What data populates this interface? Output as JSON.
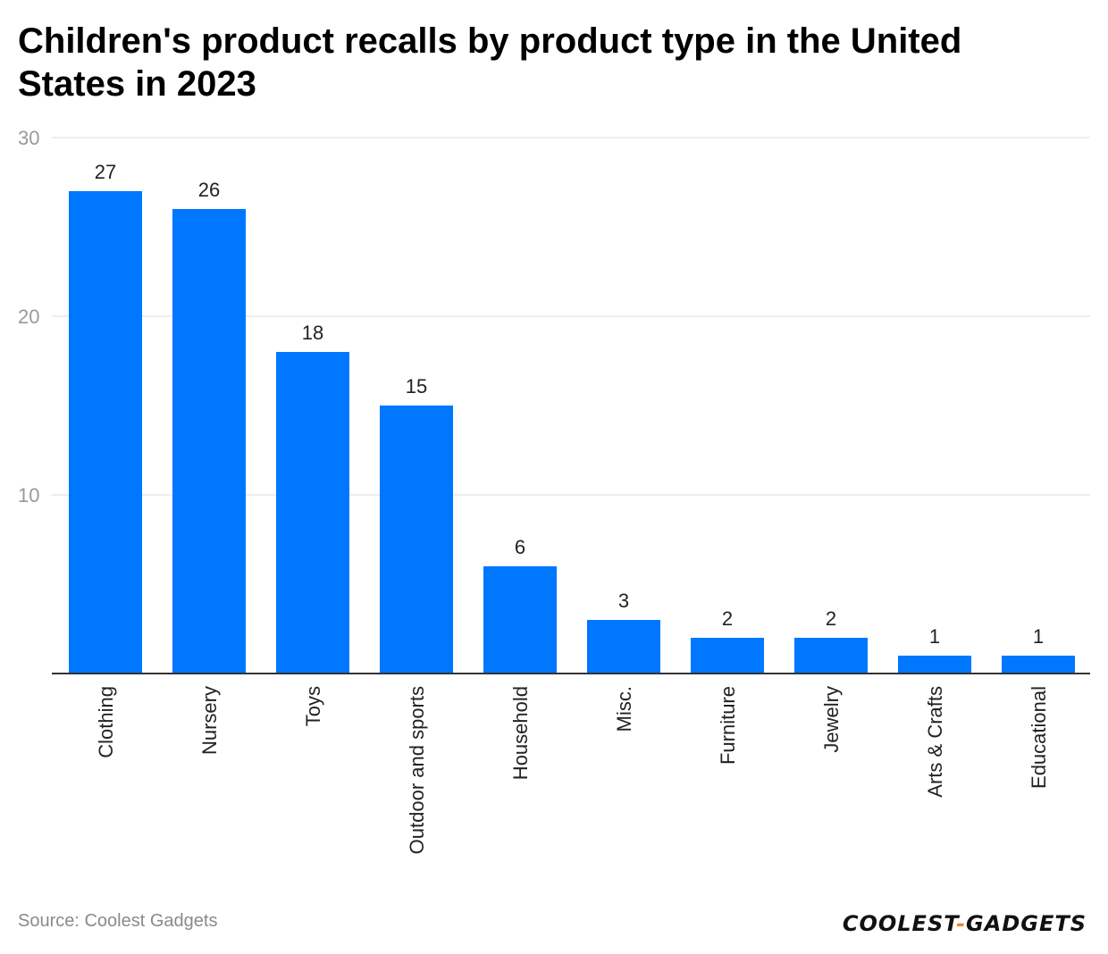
{
  "chart_data": {
    "type": "bar",
    "title": "Children's product recalls by product type in the United States in 2023",
    "categories": [
      "Clothing",
      "Nursery",
      "Toys",
      "Outdoor and sports",
      "Household",
      "Misc.",
      "Furniture",
      "Jewelry",
      "Arts & Crafts",
      "Educational"
    ],
    "values": [
      27,
      26,
      18,
      15,
      6,
      3,
      2,
      2,
      1,
      1
    ],
    "xlabel": "",
    "ylabel": "",
    "ylim": [
      0,
      30
    ],
    "yticks": [
      10,
      20,
      30
    ],
    "grid": true,
    "bar_color": "#0077ff"
  },
  "footer": {
    "source": "Source: Coolest Gadgets",
    "logo_left": "COOLEST",
    "logo_dash": "-",
    "logo_right": "GADGETS"
  },
  "colors": {
    "gridline": "#e6e6e6",
    "axis": "#333333",
    "tick_label": "#9a9a9a",
    "data_label": "#222222",
    "category_label": "#222222",
    "accent": "#f5821f"
  }
}
